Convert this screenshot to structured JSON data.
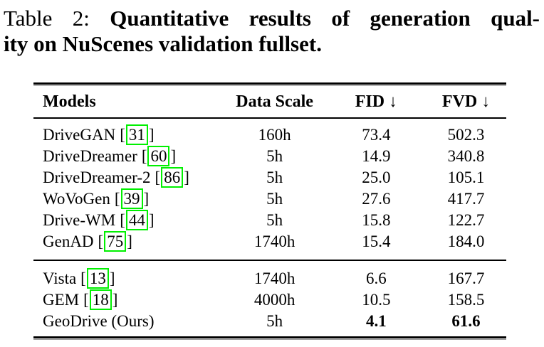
{
  "caption": {
    "label": "Table 2:",
    "title_line1": "Quantitative results of generation qual-",
    "title_line2": "ity on NuScenes validation fullset."
  },
  "table": {
    "header": {
      "models": "Models",
      "data_scale": "Data Scale",
      "fid": "FID ↓",
      "fvd": "FVD ↓"
    },
    "bracket_open": "[",
    "bracket_close": "]",
    "citation_box_color": "#00f000",
    "sections": [
      {
        "rows": [
          {
            "model": "DriveGAN",
            "cite": "31",
            "data_scale": "160h",
            "fid": "73.4",
            "fvd": "502.3"
          },
          {
            "model": "DriveDreamer",
            "cite": "60",
            "data_scale": "5h",
            "fid": "14.9",
            "fvd": "340.8"
          },
          {
            "model": "DriveDreamer-2",
            "cite": "86",
            "data_scale": "5h",
            "fid": "25.0",
            "fvd": "105.1"
          },
          {
            "model": "WoVoGen",
            "cite": "39",
            "data_scale": "5h",
            "fid": "27.6",
            "fvd": "417.7"
          },
          {
            "model": "Drive-WM",
            "cite": "44",
            "data_scale": "5h",
            "fid": "15.8",
            "fvd": "122.7"
          },
          {
            "model": "GenAD",
            "cite": "75",
            "data_scale": "1740h",
            "fid": "15.4",
            "fvd": "184.0"
          }
        ]
      },
      {
        "rows": [
          {
            "model": "Vista",
            "cite": "13",
            "data_scale": "1740h",
            "fid": "6.6",
            "fvd": "167.7"
          },
          {
            "model": "GEM",
            "cite": "18",
            "data_scale": "4000h",
            "fid": "10.5",
            "fvd": "158.5"
          },
          {
            "model": "GeoDrive (Ours)",
            "data_scale": "5h",
            "fid": "4.1",
            "fvd": "61.6"
          }
        ]
      }
    ]
  }
}
